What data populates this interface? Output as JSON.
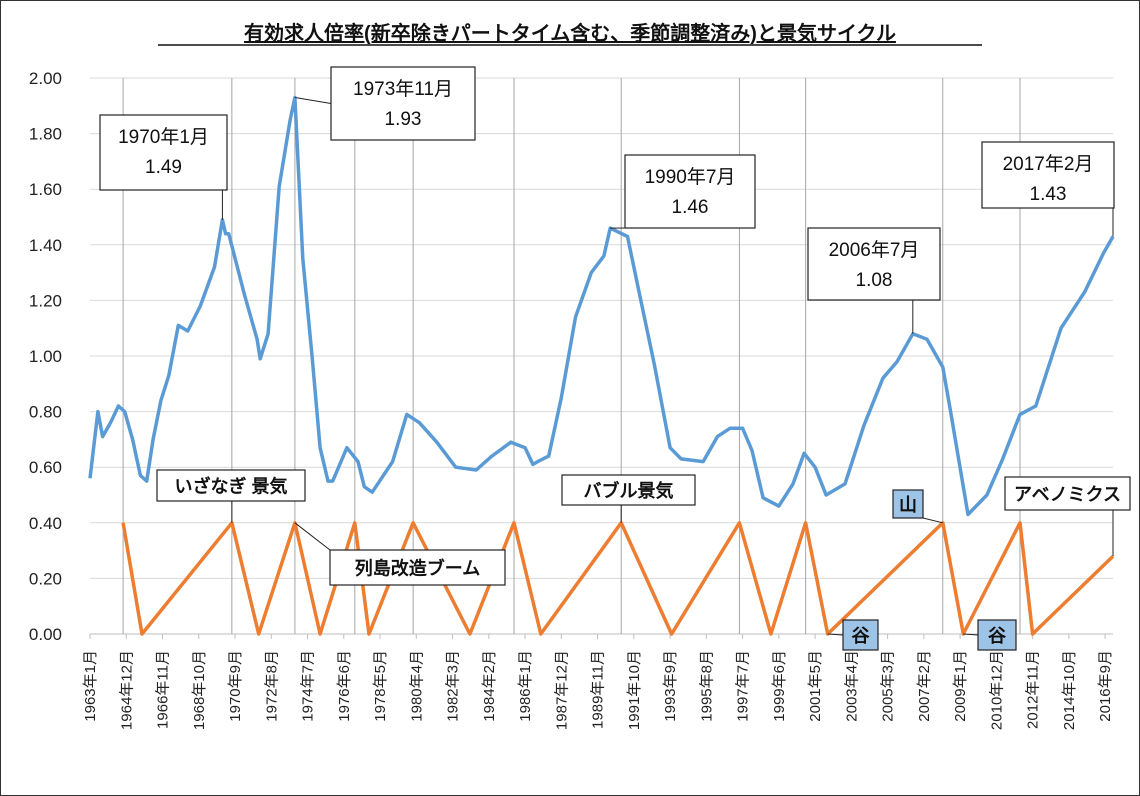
{
  "chart_data": {
    "type": "line",
    "title": "有効求人倍率(新卒除きパートタイム含む、季節調整済み)と景気サイクル",
    "xlabel": "",
    "ylabel": "",
    "ylim": [
      0,
      2.0
    ],
    "y_ticks": [
      "0.00",
      "0.20",
      "0.40",
      "0.60",
      "0.80",
      "1.00",
      "1.20",
      "1.40",
      "1.60",
      "1.80",
      "2.00"
    ],
    "x_range": [
      "1963-01",
      "2017-02"
    ],
    "x_tick_labels": [
      "1963年1月",
      "1964年12月",
      "1966年11月",
      "1968年10月",
      "1970年9月",
      "1972年8月",
      "1974年7月",
      "1976年6月",
      "1978年5月",
      "1980年4月",
      "1982年3月",
      "1984年2月",
      "1986年1月",
      "1987年12月",
      "1989年11月",
      "1991年10月",
      "1993年9月",
      "1995年8月",
      "1997年7月",
      "1999年6月",
      "2001年5月",
      "2003年4月",
      "2005年3月",
      "2007年2月",
      "2009年1月",
      "2010年12月",
      "2012年11月",
      "2014年10月",
      "2016年9月"
    ],
    "grid": "horizontal",
    "legend": "none",
    "series": [
      {
        "color": "#5b9bd5",
        "points": [
          [
            "1963-01",
            0.56
          ],
          [
            "1963-06",
            0.8
          ],
          [
            "1963-09",
            0.71
          ],
          [
            "1964-02",
            0.76
          ],
          [
            "1964-07",
            0.82
          ],
          [
            "1964-11",
            0.8
          ],
          [
            "1965-04",
            0.7
          ],
          [
            "1965-09",
            0.57
          ],
          [
            "1966-01",
            0.55
          ],
          [
            "1966-05",
            0.7
          ],
          [
            "1966-10",
            0.84
          ],
          [
            "1967-03",
            0.93
          ],
          [
            "1967-09",
            1.11
          ],
          [
            "1968-03",
            1.09
          ],
          [
            "1968-11",
            1.18
          ],
          [
            "1969-08",
            1.32
          ],
          [
            "1970-01",
            1.49
          ],
          [
            "1970-03",
            1.44
          ],
          [
            "1970-05",
            1.44
          ],
          [
            "1971-03",
            1.22
          ],
          [
            "1971-11",
            1.06
          ],
          [
            "1972-01",
            0.99
          ],
          [
            "1972-06",
            1.08
          ],
          [
            "1973-01",
            1.61
          ],
          [
            "1973-08",
            1.85
          ],
          [
            "1973-11",
            1.93
          ],
          [
            "1974-04",
            1.35
          ],
          [
            "1974-10",
            0.99
          ],
          [
            "1975-03",
            0.67
          ],
          [
            "1975-08",
            0.55
          ],
          [
            "1975-11",
            0.55
          ],
          [
            "1976-08",
            0.67
          ],
          [
            "1977-03",
            0.62
          ],
          [
            "1977-07",
            0.53
          ],
          [
            "1977-12",
            0.51
          ],
          [
            "1979-01",
            0.62
          ],
          [
            "1979-10",
            0.79
          ],
          [
            "1980-06",
            0.76
          ],
          [
            "1981-05",
            0.69
          ],
          [
            "1982-05",
            0.6
          ],
          [
            "1983-06",
            0.59
          ],
          [
            "1984-04",
            0.64
          ],
          [
            "1985-04",
            0.69
          ],
          [
            "1986-01",
            0.67
          ],
          [
            "1986-06",
            0.61
          ],
          [
            "1986-09",
            0.62
          ],
          [
            "1987-04",
            0.64
          ],
          [
            "1987-12",
            0.85
          ],
          [
            "1988-09",
            1.14
          ],
          [
            "1989-07",
            1.3
          ],
          [
            "1990-03",
            1.36
          ],
          [
            "1990-07",
            1.46
          ],
          [
            "1991-06",
            1.43
          ],
          [
            "1992-01",
            1.24
          ],
          [
            "1992-11",
            0.97
          ],
          [
            "1993-09",
            0.67
          ],
          [
            "1994-04",
            0.63
          ],
          [
            "1995-06",
            0.62
          ],
          [
            "1996-03",
            0.71
          ],
          [
            "1996-11",
            0.74
          ],
          [
            "1997-07",
            0.74
          ],
          [
            "1998-01",
            0.66
          ],
          [
            "1998-08",
            0.49
          ],
          [
            "1999-06",
            0.46
          ],
          [
            "2000-03",
            0.54
          ],
          [
            "2000-10",
            0.65
          ],
          [
            "2001-05",
            0.6
          ],
          [
            "2001-12",
            0.5
          ],
          [
            "2002-12",
            0.54
          ],
          [
            "2003-12",
            0.75
          ],
          [
            "2004-12",
            0.92
          ],
          [
            "2005-09",
            0.98
          ],
          [
            "2006-07",
            1.08
          ],
          [
            "2007-04",
            1.06
          ],
          [
            "2008-02",
            0.96
          ],
          [
            "2008-07",
            0.8
          ],
          [
            "2009-06",
            0.43
          ],
          [
            "2010-06",
            0.5
          ],
          [
            "2011-04",
            0.63
          ],
          [
            "2012-03",
            0.79
          ],
          [
            "2013-01",
            0.82
          ],
          [
            "2014-05",
            1.1
          ],
          [
            "2015-08",
            1.23
          ],
          [
            "2016-08",
            1.37
          ],
          [
            "2017-02",
            1.43
          ]
        ]
      },
      {
        "color": "#ed7d31",
        "points": [
          [
            "1964-10",
            0.4
          ],
          [
            "1965-10",
            0
          ],
          [
            "1970-07",
            0.4
          ],
          [
            "1971-12",
            0
          ],
          [
            "1973-11",
            0.4
          ],
          [
            "1975-03",
            0
          ],
          [
            "1977-01",
            0.4
          ],
          [
            "1977-10",
            0
          ],
          [
            "1980-02",
            0.4
          ],
          [
            "1983-02",
            0
          ],
          [
            "1985-06",
            0.4
          ],
          [
            "1986-11",
            0
          ],
          [
            "1991-02",
            0.4
          ],
          [
            "1993-10",
            0
          ],
          [
            "1997-05",
            0.4
          ],
          [
            "1999-01",
            0
          ],
          [
            "2000-11",
            0.4
          ],
          [
            "2002-01",
            0
          ],
          [
            "2008-02",
            0.4
          ],
          [
            "2009-03",
            0
          ],
          [
            "2012-03",
            0.4
          ],
          [
            "2012-11",
            0
          ],
          [
            "2017-02",
            0.28
          ]
        ]
      }
    ],
    "annotations": [
      {
        "lines": [
          "1970年1月",
          "1.49"
        ],
        "date": "1970-01",
        "value": 1.49,
        "style": "plain"
      },
      {
        "lines": [
          "1973年11月",
          "1.93"
        ],
        "date": "1973-11",
        "value": 1.93,
        "style": "plain"
      },
      {
        "lines": [
          "1990年7月",
          "1.46"
        ],
        "date": "1990-07",
        "value": 1.46,
        "style": "plain"
      },
      {
        "lines": [
          "2006年7月",
          "1.08"
        ],
        "date": "2006-07",
        "value": 1.08,
        "style": "plain"
      },
      {
        "lines": [
          "2017年2月",
          "1.43"
        ],
        "date": "2017-02",
        "value": 1.43,
        "style": "plain"
      },
      {
        "lines": [
          "いざなぎ 景気"
        ],
        "date": "1970-07",
        "value": 0.4,
        "style": "bold"
      },
      {
        "lines": [
          "列島改造ブーム"
        ],
        "date": "1973-11",
        "value": 0.4,
        "style": "bold"
      },
      {
        "lines": [
          "バブル景気"
        ],
        "date": "1991-02",
        "value": 0.4,
        "style": "bold"
      },
      {
        "lines": [
          "山"
        ],
        "date": "2008-02",
        "value": 0.4,
        "style": "blue"
      },
      {
        "lines": [
          "谷"
        ],
        "date": "2002-01",
        "value": 0,
        "style": "blue"
      },
      {
        "lines": [
          "谷"
        ],
        "date": "2009-03",
        "value": 0,
        "style": "blue"
      },
      {
        "lines": [
          "アベノミクス"
        ],
        "date": "2017-02",
        "value": 0.28,
        "style": "bold"
      }
    ]
  }
}
